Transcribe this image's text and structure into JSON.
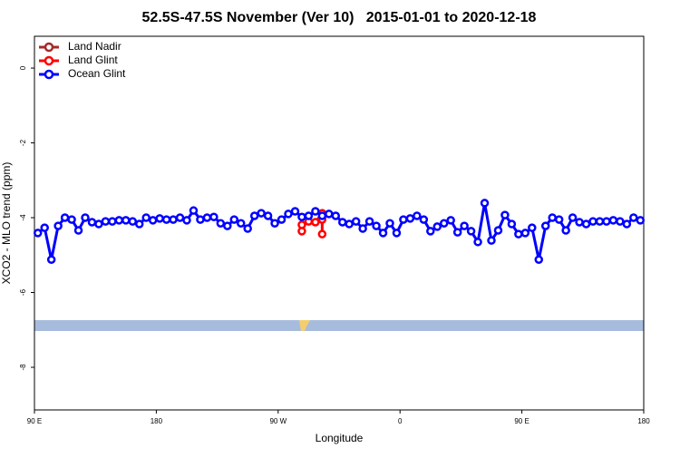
{
  "chart_data": {
    "type": "line",
    "title": "52.5S-47.5S November (Ver 10)   2015-01-01 to 2020-12-18",
    "x_label": "Longitude",
    "y_label": "XCO2 - MLO trend (ppm)",
    "xlim": [
      90,
      540
    ],
    "ylim": [
      -9.14,
      0.85
    ],
    "xticks": [
      {
        "value": 90,
        "label": "90 E"
      },
      {
        "value": 180,
        "label": "180"
      },
      {
        "value": 270,
        "label": "90 W"
      },
      {
        "value": 360,
        "label": "0"
      },
      {
        "value": 450,
        "label": "90 E"
      },
      {
        "value": 540,
        "label": "180"
      }
    ],
    "yticks": [
      0,
      -2,
      -4,
      -6,
      -8
    ],
    "series": [
      {
        "name": "Land Nadir",
        "color": "#a52a2a",
        "x": [],
        "values": []
      },
      {
        "name": "Land Glint",
        "color": "#ff0000",
        "x": [
          287.5,
          287.5,
          292.5,
          297.5,
          302.5,
          302.5,
          302.5
        ],
        "values": [
          -4.36,
          -4.19,
          -4.1,
          -4.12,
          -3.88,
          -4.44,
          -4.05
        ]
      },
      {
        "name": "Ocean Glint",
        "color": "#0000ff",
        "x": [
          92.5,
          97.5,
          102.5,
          107.5,
          112.5,
          117.5,
          122.5,
          127.5,
          132.5,
          137.5,
          142.5,
          147.5,
          152.5,
          157.5,
          162.5,
          167.5,
          172.5,
          177.5,
          182.5,
          187.5,
          192.5,
          197.5,
          202.5,
          207.5,
          212.5,
          217.5,
          222.5,
          227.5,
          232.5,
          237.5,
          242.5,
          247.5,
          252.5,
          257.5,
          262.5,
          267.5,
          272.5,
          277.5,
          282.5,
          287.5,
          292.5,
          297.5,
          302.5,
          307.5,
          312.5,
          317.5,
          322.5,
          327.5,
          332.5,
          337.5,
          342.5,
          347.5,
          352.5,
          357.5,
          362.5,
          367.5,
          372.5,
          377.5,
          382.5,
          387.5,
          392.5,
          397.5,
          402.5,
          407.5,
          412.5,
          417.5,
          422.5,
          427.5,
          432.5,
          437.5,
          442.5,
          447.5,
          452.5,
          457.5,
          462.5,
          467.5,
          472.5,
          477.5,
          482.5,
          487.5,
          492.5,
          497.5,
          502.5,
          507.5,
          512.5,
          517.5,
          522.5,
          527.5,
          532.5,
          537.5
        ],
        "values": [
          -4.41,
          -4.27,
          -5.12,
          -4.22,
          -4.0,
          -4.05,
          -4.34,
          -4.0,
          -4.12,
          -4.17,
          -4.1,
          -4.1,
          -4.07,
          -4.07,
          -4.1,
          -4.17,
          -4.0,
          -4.07,
          -4.02,
          -4.05,
          -4.05,
          -4.0,
          -4.07,
          -3.81,
          -4.05,
          -4.0,
          -3.98,
          -4.15,
          -4.22,
          -4.05,
          -4.15,
          -4.29,
          -3.95,
          -3.88,
          -3.95,
          -4.15,
          -4.05,
          -3.9,
          -3.83,
          -3.98,
          -3.95,
          -3.83,
          -3.95,
          -3.9,
          -3.95,
          -4.12,
          -4.17,
          -4.1,
          -4.29,
          -4.1,
          -4.22,
          -4.41,
          -4.15,
          -4.41,
          -4.05,
          -4.02,
          -3.95,
          -4.05,
          -4.36,
          -4.24,
          -4.15,
          -4.07,
          -4.39,
          -4.22,
          -4.36,
          -4.65,
          -3.61,
          -4.61,
          -4.34,
          -3.93,
          -4.17,
          -4.44,
          -4.41,
          -4.27,
          -5.12,
          -4.22,
          -4.0,
          -4.05,
          -4.34,
          -4.0,
          -4.12,
          -4.17,
          -4.1,
          -4.1,
          -4.1,
          -4.07,
          -4.1,
          -4.17,
          -4.0,
          -4.07
        ]
      }
    ]
  }
}
